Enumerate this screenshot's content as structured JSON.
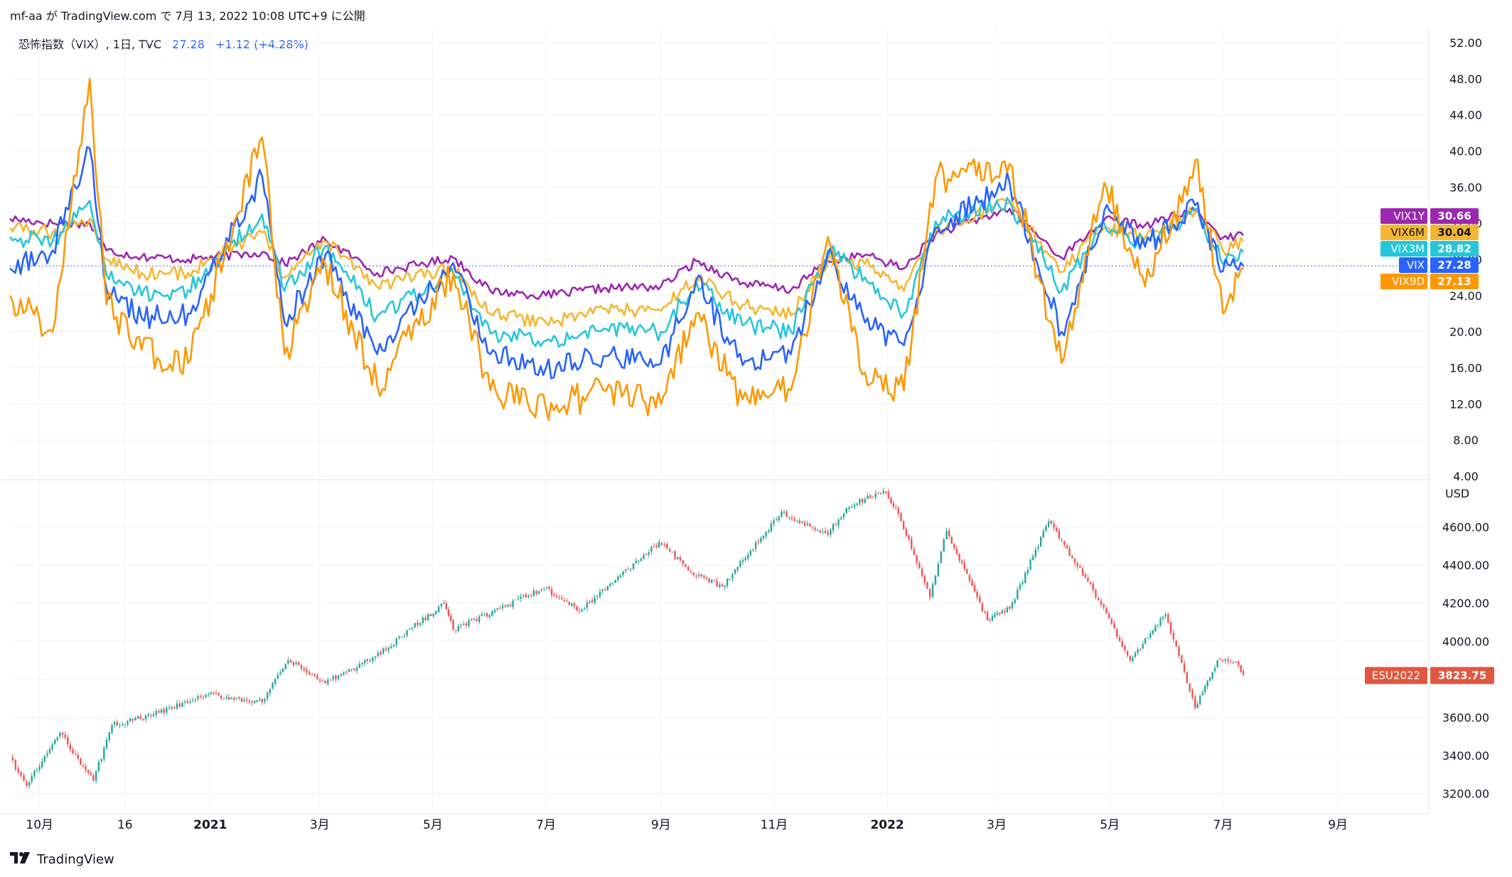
{
  "header": {
    "publisher": "mf-aa が TradingView.com で 7月 13, 2022 10:08 UTC+9 に公開"
  },
  "legend": {
    "title": "恐怖指数（VIX）, 1日, TVC",
    "price": "27.28",
    "change": "+1.12 (+4.28%)"
  },
  "footer": {
    "brand": "TradingView"
  },
  "colors": {
    "vix1y": "#9c27b0",
    "vix6m": "#f5b731",
    "vix3m": "#26c6da",
    "vix": "#2962ff",
    "vix9d": "#ff9800",
    "es_up": "#26a69a",
    "es_down": "#ef5350",
    "es_label": "#e0573f",
    "grid": "#f0f3fa",
    "axis_text": "#131722"
  },
  "chart_data": [
    {
      "type": "line",
      "title": "恐怖指数（VIX）, 1日, TVC",
      "ylim": [
        4,
        52
      ],
      "y_ticks": [
        "52.00",
        "48.00",
        "44.00",
        "40.00",
        "36.00",
        "32.00",
        "28.00",
        "24.00",
        "20.00",
        "16.00",
        "12.00",
        "8.00",
        "4.00"
      ],
      "y_tick_values": [
        52,
        48,
        44,
        40,
        36,
        32,
        28,
        24,
        20,
        16,
        12,
        8,
        4
      ],
      "x_range": [
        "2020-09-15",
        "2022-10-20"
      ],
      "current_price_line": 27.28,
      "grid": true,
      "series": [
        {
          "name": "VIX1Y",
          "last": "30.66",
          "color_key": "vix1y",
          "points": [
            [
              "2020-09-15",
              32.5
            ],
            [
              "2020-10-08",
              32.0
            ],
            [
              "2020-10-28",
              32.0
            ],
            [
              "2020-11-06",
              29.0
            ],
            [
              "2020-11-25",
              28.3
            ],
            [
              "2020-12-20",
              28.0
            ],
            [
              "2021-01-29",
              28.8
            ],
            [
              "2021-02-10",
              27.5
            ],
            [
              "2021-03-04",
              30.2
            ],
            [
              "2021-04-01",
              26.5
            ],
            [
              "2021-05-12",
              28.2
            ],
            [
              "2021-06-01",
              24.5
            ],
            [
              "2021-07-01",
              24.0
            ],
            [
              "2021-08-01",
              24.8
            ],
            [
              "2021-09-01",
              25.0
            ],
            [
              "2021-09-20",
              27.8
            ],
            [
              "2021-10-15",
              25.4
            ],
            [
              "2021-11-10",
              24.6
            ],
            [
              "2021-11-30",
              27.8
            ],
            [
              "2021-12-20",
              28.5
            ],
            [
              "2022-01-10",
              27.0
            ],
            [
              "2022-01-27",
              30.8
            ],
            [
              "2022-03-08",
              33.6
            ],
            [
              "2022-04-05",
              28.2
            ],
            [
              "2022-04-28",
              32.4
            ],
            [
              "2022-05-20",
              31.8
            ],
            [
              "2022-06-16",
              33.4
            ],
            [
              "2022-07-01",
              30.4
            ],
            [
              "2022-07-12",
              30.66
            ]
          ]
        },
        {
          "name": "VIX6M",
          "last": "30.04",
          "color_key": "vix6m",
          "points": [
            [
              "2020-09-15",
              31.5
            ],
            [
              "2020-10-08",
              31.0
            ],
            [
              "2020-10-28",
              32.5
            ],
            [
              "2020-11-06",
              28.0
            ],
            [
              "2020-11-25",
              26.5
            ],
            [
              "2020-12-20",
              26.5
            ],
            [
              "2021-01-29",
              31.0
            ],
            [
              "2021-02-10",
              26.0
            ],
            [
              "2021-03-04",
              30.0
            ],
            [
              "2021-04-01",
              25.0
            ],
            [
              "2021-05-12",
              27.0
            ],
            [
              "2021-06-01",
              22.0
            ],
            [
              "2021-07-01",
              21.0
            ],
            [
              "2021-08-01",
              22.5
            ],
            [
              "2021-09-01",
              22.3
            ],
            [
              "2021-09-20",
              26.0
            ],
            [
              "2021-10-15",
              23.0
            ],
            [
              "2021-11-10",
              21.8
            ],
            [
              "2021-11-30",
              28.0
            ],
            [
              "2021-12-20",
              27.5
            ],
            [
              "2022-01-10",
              24.5
            ],
            [
              "2022-01-27",
              31.0
            ],
            [
              "2022-03-08",
              34.3
            ],
            [
              "2022-04-05",
              26.6
            ],
            [
              "2022-04-28",
              31.5
            ],
            [
              "2022-05-20",
              30.4
            ],
            [
              "2022-06-16",
              33.3
            ],
            [
              "2022-07-01",
              29.0
            ],
            [
              "2022-07-12",
              30.04
            ]
          ]
        },
        {
          "name": "VIX3M",
          "last": "28.82",
          "color_key": "vix3m",
          "points": [
            [
              "2020-09-15",
              30.5
            ],
            [
              "2020-10-08",
              30.0
            ],
            [
              "2020-10-28",
              34.5
            ],
            [
              "2020-11-06",
              26.3
            ],
            [
              "2020-11-25",
              24.0
            ],
            [
              "2020-12-20",
              24.6
            ],
            [
              "2021-01-29",
              33.0
            ],
            [
              "2021-02-10",
              24.5
            ],
            [
              "2021-03-04",
              29.5
            ],
            [
              "2021-04-01",
              21.7
            ],
            [
              "2021-05-12",
              26.5
            ],
            [
              "2021-06-01",
              19.8
            ],
            [
              "2021-07-01",
              19.0
            ],
            [
              "2021-08-01",
              20.3
            ],
            [
              "2021-09-01",
              20.0
            ],
            [
              "2021-09-20",
              25.5
            ],
            [
              "2021-10-15",
              20.7
            ],
            [
              "2021-11-10",
              20.0
            ],
            [
              "2021-11-30",
              29.0
            ],
            [
              "2021-12-20",
              26.0
            ],
            [
              "2022-01-10",
              22.0
            ],
            [
              "2022-01-27",
              32.2
            ],
            [
              "2022-03-08",
              34.4
            ],
            [
              "2022-04-05",
              24.5
            ],
            [
              "2022-04-28",
              32.0
            ],
            [
              "2022-05-20",
              29.5
            ],
            [
              "2022-06-16",
              33.6
            ],
            [
              "2022-07-01",
              27.5
            ],
            [
              "2022-07-12",
              28.82
            ]
          ]
        },
        {
          "name": "VIX",
          "last": "27.28",
          "color_key": "vix",
          "points": [
            [
              "2020-09-15",
              27.0
            ],
            [
              "2020-10-08",
              29.0
            ],
            [
              "2020-10-28",
              40.3
            ],
            [
              "2020-11-06",
              24.8
            ],
            [
              "2020-11-25",
              21.5
            ],
            [
              "2020-12-20",
              22.0
            ],
            [
              "2021-01-29",
              37.2
            ],
            [
              "2021-02-10",
              21.0
            ],
            [
              "2021-03-04",
              28.5
            ],
            [
              "2021-04-01",
              17.5
            ],
            [
              "2021-05-12",
              27.6
            ],
            [
              "2021-06-01",
              17.5
            ],
            [
              "2021-07-01",
              16.0
            ],
            [
              "2021-08-01",
              17.3
            ],
            [
              "2021-09-01",
              16.5
            ],
            [
              "2021-09-20",
              25.7
            ],
            [
              "2021-10-15",
              16.3
            ],
            [
              "2021-11-10",
              17.5
            ],
            [
              "2021-11-30",
              28.6
            ],
            [
              "2021-12-20",
              21.0
            ],
            [
              "2022-01-10",
              18.5
            ],
            [
              "2022-01-27",
              31.5
            ],
            [
              "2022-03-08",
              36.5
            ],
            [
              "2022-04-05",
              20.0
            ],
            [
              "2022-04-28",
              33.4
            ],
            [
              "2022-05-20",
              29.4
            ],
            [
              "2022-06-16",
              34.0
            ],
            [
              "2022-07-01",
              26.7
            ],
            [
              "2022-07-12",
              27.28
            ]
          ]
        },
        {
          "name": "VIX9D",
          "last": "27.13",
          "color_key": "vix9d",
          "points": [
            [
              "2020-09-15",
              24.0
            ],
            [
              "2020-10-08",
              20.0
            ],
            [
              "2020-10-28",
              48.0
            ],
            [
              "2020-11-06",
              23.0
            ],
            [
              "2020-11-25",
              18.0
            ],
            [
              "2020-12-20",
              16.5
            ],
            [
              "2021-01-29",
              41.5
            ],
            [
              "2021-02-10",
              17.5
            ],
            [
              "2021-03-04",
              27.5
            ],
            [
              "2021-04-01",
              14.0
            ],
            [
              "2021-05-12",
              26.5
            ],
            [
              "2021-06-01",
              13.5
            ],
            [
              "2021-07-01",
              11.5
            ],
            [
              "2021-08-01",
              13.5
            ],
            [
              "2021-09-01",
              12.0
            ],
            [
              "2021-09-20",
              22.0
            ],
            [
              "2021-10-15",
              12.5
            ],
            [
              "2021-11-10",
              13.5
            ],
            [
              "2021-11-30",
              30.5
            ],
            [
              "2021-12-20",
              15.5
            ],
            [
              "2022-01-10",
              13.5
            ],
            [
              "2022-01-27",
              37.0
            ],
            [
              "2022-03-08",
              38.6
            ],
            [
              "2022-04-05",
              16.5
            ],
            [
              "2022-04-28",
              36.5
            ],
            [
              "2022-05-20",
              25.0
            ],
            [
              "2022-06-16",
              39.0
            ],
            [
              "2022-07-01",
              22.0
            ],
            [
              "2022-07-12",
              27.13
            ]
          ]
        }
      ]
    },
    {
      "type": "candlestick",
      "name": "ESU2022",
      "last": "3823.75",
      "unit": "USD",
      "ylim": [
        3120,
        4800
      ],
      "y_ticks": [
        "4600.00",
        "4400.00",
        "4200.00",
        "4000.00",
        "3800.00",
        "3600.00",
        "3400.00",
        "3200.00"
      ],
      "y_tick_values": [
        4600,
        4400,
        4200,
        4000,
        3800,
        3600,
        3400,
        3200
      ],
      "x_range": [
        "2020-09-15",
        "2022-10-20"
      ],
      "grid": true,
      "points": [
        [
          "2020-09-15",
          3390
        ],
        [
          "2020-09-24",
          3240
        ],
        [
          "2020-10-12",
          3520
        ],
        [
          "2020-10-30",
          3270
        ],
        [
          "2020-11-09",
          3560
        ],
        [
          "2020-11-30",
          3610
        ],
        [
          "2020-12-31",
          3720
        ],
        [
          "2021-01-29",
          3680
        ],
        [
          "2021-02-12",
          3900
        ],
        [
          "2021-03-04",
          3780
        ],
        [
          "2021-03-31",
          3920
        ],
        [
          "2021-05-07",
          4200
        ],
        [
          "2021-05-12",
          4060
        ],
        [
          "2021-06-30",
          4280
        ],
        [
          "2021-07-19",
          4160
        ],
        [
          "2021-08-31",
          4520
        ],
        [
          "2021-09-20",
          4340
        ],
        [
          "2021-10-04",
          4290
        ],
        [
          "2021-11-05",
          4680
        ],
        [
          "2021-11-30",
          4560
        ],
        [
          "2021-12-10",
          4700
        ],
        [
          "2021-12-30",
          4790
        ],
        [
          "2022-01-07",
          4670
        ],
        [
          "2022-01-24",
          4230
        ],
        [
          "2022-02-02",
          4580
        ],
        [
          "2022-02-24",
          4110
        ],
        [
          "2022-03-08",
          4170
        ],
        [
          "2022-03-29",
          4630
        ],
        [
          "2022-04-22",
          4270
        ],
        [
          "2022-05-12",
          3900
        ],
        [
          "2022-05-31",
          4140
        ],
        [
          "2022-06-16",
          3650
        ],
        [
          "2022-06-28",
          3900
        ],
        [
          "2022-07-08",
          3890
        ],
        [
          "2022-07-12",
          3823.75
        ]
      ]
    }
  ],
  "x_axis": {
    "labels": [
      {
        "text": "10月",
        "date": "2020-10-01",
        "bold": false
      },
      {
        "text": "16",
        "date": "2020-11-16",
        "bold": false
      },
      {
        "text": "2021",
        "date": "2021-01-01",
        "bold": true
      },
      {
        "text": "3月",
        "date": "2021-03-01",
        "bold": false
      },
      {
        "text": "5月",
        "date": "2021-05-01",
        "bold": false
      },
      {
        "text": "7月",
        "date": "2021-07-01",
        "bold": false
      },
      {
        "text": "9月",
        "date": "2021-09-01",
        "bold": false
      },
      {
        "text": "11月",
        "date": "2021-11-01",
        "bold": false
      },
      {
        "text": "2022",
        "date": "2022-01-01",
        "bold": true
      },
      {
        "text": "3月",
        "date": "2022-03-01",
        "bold": false
      },
      {
        "text": "5月",
        "date": "2022-05-01",
        "bold": false
      },
      {
        "text": "7月",
        "date": "2022-07-01",
        "bold": false
      },
      {
        "text": "9月",
        "date": "2022-09-01",
        "bold": false
      }
    ]
  }
}
